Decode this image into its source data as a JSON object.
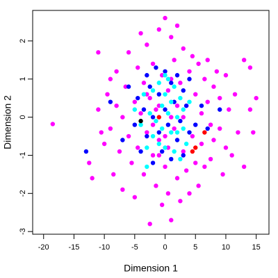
{
  "chart_data": {
    "type": "scatter",
    "x_label": "Dimension 1",
    "y_label": "Dimension 2",
    "xlim": [
      -21.8,
      17.1
    ],
    "ylim": [
      -3.07,
      2.8
    ],
    "xticks": [
      -20,
      -15,
      -10,
      -5,
      0,
      5,
      10,
      15
    ],
    "yticks": [
      -3,
      -2,
      -1,
      0,
      1,
      2
    ],
    "grid": false,
    "series": [
      {
        "color": "#ff00ff",
        "x": [
          -18.5,
          -12.5,
          -12,
          -11,
          -11,
          -10.5,
          -10,
          -9.5,
          -9,
          -9,
          -8.5,
          -8,
          -8,
          -7.5,
          -7,
          -7,
          -6.5,
          -6,
          -6,
          -5.5,
          -5,
          -5,
          -4.5,
          -4.5,
          -4,
          -4,
          -3.5,
          -3.5,
          -3,
          -3,
          -2.5,
          -2.5,
          -2,
          -2,
          -1.5,
          -1.5,
          -1,
          -1,
          -0.5,
          -0.5,
          0,
          0,
          0.5,
          0.5,
          1,
          1,
          1.5,
          1.5,
          2,
          2,
          2.5,
          2.5,
          3,
          3,
          3.5,
          3.5,
          4,
          4,
          4.5,
          4.5,
          5,
          5,
          5.5,
          5.5,
          6,
          6,
          6.5,
          6.5,
          7,
          7,
          7.5,
          7.5,
          8,
          8,
          8.5,
          9,
          9,
          9.5,
          10,
          10,
          10.5,
          11,
          11.5,
          12,
          13,
          13,
          14,
          14,
          15,
          14.5,
          -1,
          1,
          -2,
          2,
          0,
          3,
          -3,
          1,
          -1,
          0.5
        ],
        "values": [
          -0.18,
          -1.2,
          -1.6,
          1.7,
          0.2,
          -0.4,
          -0.7,
          0.6,
          -0.3,
          1.0,
          -1.5,
          0.3,
          1.2,
          -0.9,
          0.0,
          -1.9,
          0.8,
          -0.5,
          1.7,
          -1.2,
          0.4,
          -2.1,
          1.3,
          -0.8,
          2.2,
          0.1,
          -1.5,
          0.9,
          -0.4,
          1.9,
          -2.8,
          0.5,
          -1.0,
          1.4,
          -1.8,
          0.2,
          2.3,
          -0.6,
          1.1,
          -2.3,
          2.6,
          -1.3,
          0.7,
          -2.0,
          2.1,
          -2.7,
          1.5,
          -0.3,
          -1.6,
          2.4,
          0.9,
          -2.2,
          1.8,
          -0.9,
          -1.4,
          0.3,
          1.2,
          -2.0,
          -0.5,
          1.6,
          0.6,
          -1.2,
          1.4,
          -1.8,
          0.1,
          -0.7,
          1.0,
          -1.3,
          0.4,
          1.5,
          -0.2,
          -1.1,
          0.8,
          -0.6,
          1.2,
          -0.3,
          0.5,
          -1.5,
          1.1,
          -0.8,
          0.2,
          -1.0,
          0.6,
          -0.4,
          -1.3,
          1.5,
          1.3,
          0.2,
          0.5,
          -0.4,
          0.3,
          0.0,
          -0.2,
          0.3,
          -0.5,
          0.0,
          0.6,
          1.0,
          -1.0,
          -0.8
        ]
      },
      {
        "color": "#0000ff",
        "x": [
          -13,
          -9,
          -7,
          -6,
          -5,
          -4.5,
          -4,
          -3.5,
          -3,
          -3,
          -2.5,
          -2,
          -2,
          -1.5,
          -1,
          -1,
          -0.5,
          0,
          0,
          0.5,
          1,
          1,
          1.5,
          2,
          2,
          2.5,
          3,
          3,
          3.5,
          4,
          4,
          5,
          6,
          7,
          9
        ],
        "values": [
          -0.9,
          0.4,
          -0.6,
          0.8,
          -0.2,
          0.5,
          -0.9,
          0.2,
          1.1,
          -0.5,
          0.8,
          -1.2,
          0.0,
          1.3,
          -0.4,
          0.6,
          -0.9,
          1.2,
          0.2,
          -0.2,
          -1.1,
          0.9,
          0.4,
          -0.6,
          1.1,
          -0.1,
          0.7,
          -1.0,
          0.3,
          -0.4,
          1.0,
          -0.2,
          0.3,
          -0.3,
          0.2
        ]
      },
      {
        "color": "#00ffff",
        "x": [
          -5,
          -4,
          -3.5,
          -3,
          -2.5,
          -2,
          -2,
          -1.5,
          -1,
          -1,
          -0.5,
          -0.5,
          0,
          0,
          0.5,
          0.5,
          1,
          1,
          1.5,
          1.5,
          2,
          2,
          2.5,
          3,
          3,
          3.5,
          4,
          -3,
          0,
          2.5
        ],
        "values": [
          0.2,
          -0.2,
          0.6,
          -0.8,
          0.1,
          0.7,
          -0.5,
          -0.1,
          0.9,
          -0.7,
          0.3,
          -0.3,
          0.6,
          -0.8,
          0.1,
          1.0,
          -0.4,
          0.4,
          -0.9,
          0.8,
          0.0,
          -0.4,
          0.5,
          -0.3,
          0.2,
          -0.7,
          0.4,
          -1.3,
          1.1,
          -1.1
        ]
      },
      {
        "color": "#ff0000",
        "x": [
          5,
          4.5,
          -1,
          6.5
        ],
        "values": [
          -0.8,
          -0.9,
          0.0,
          -0.4
        ]
      },
      {
        "color": "#000000",
        "x": [
          -4
        ],
        "values": [
          -0.1
        ]
      }
    ]
  }
}
